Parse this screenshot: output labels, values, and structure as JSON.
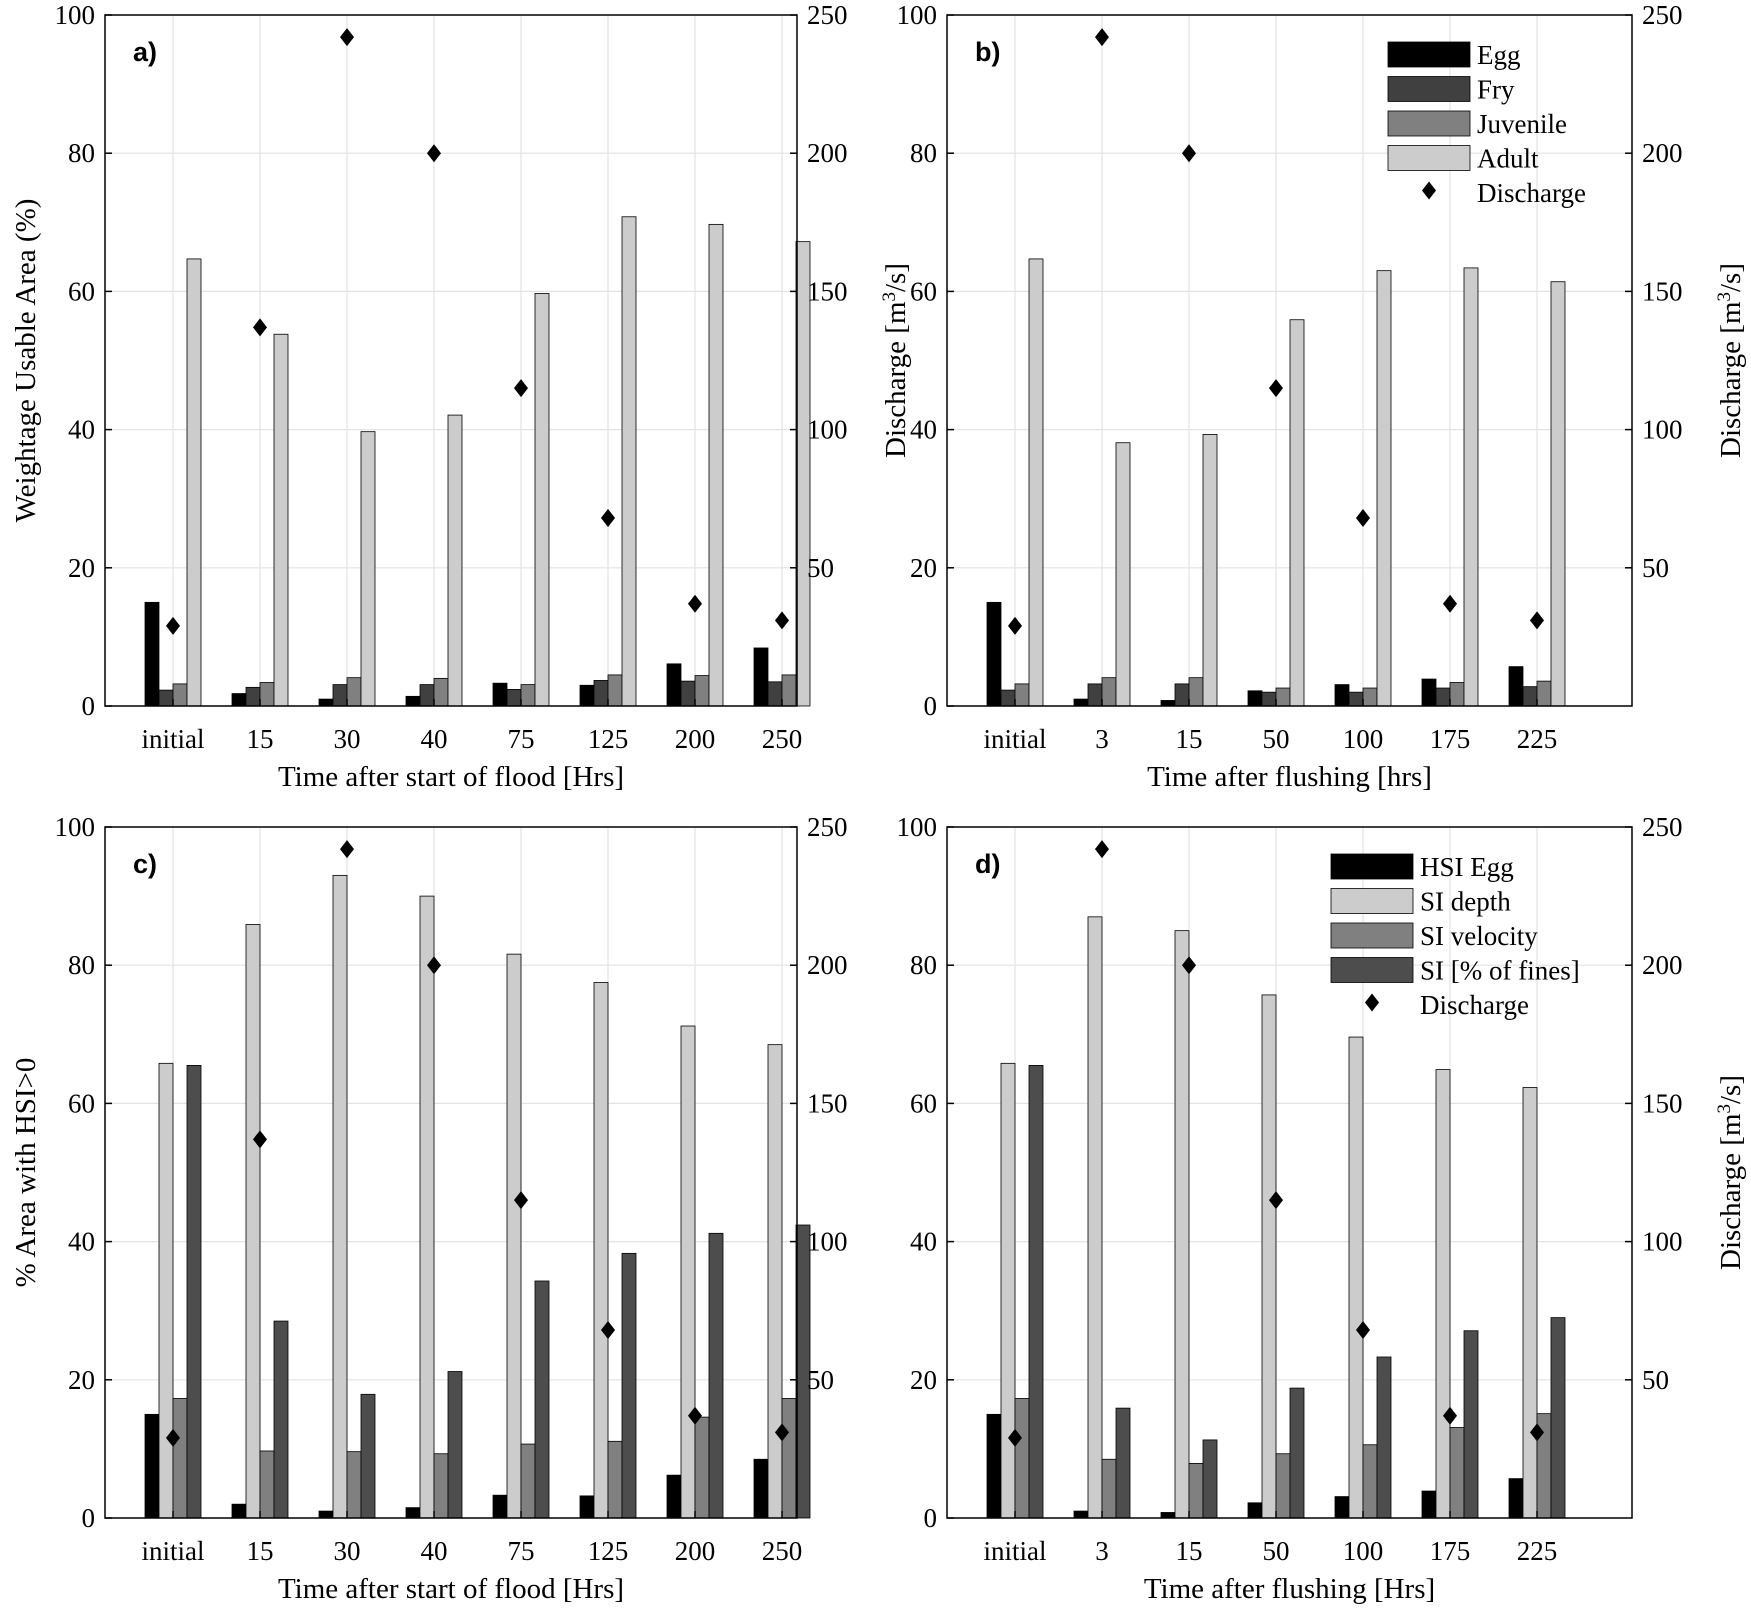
{
  "colors": {
    "egg": "#000000",
    "fry": "#404040",
    "juvenile": "#808080",
    "adult": "#cccccc",
    "hsi_egg": "#000000",
    "si_depth": "#cccccc",
    "si_velocity": "#808080",
    "si_fines": "#4d4d4d",
    "discharge": "#000000",
    "grid": "#e3e3e3"
  },
  "chart_data": [
    {
      "type": "bar",
      "panel_label": "a)",
      "xlabel": "Time after start of flood [Hrs]",
      "ylabel": "Weightage Usable Area (%)",
      "y2label": "Discharge",
      "ylim": [
        0,
        100
      ],
      "y2lim": [
        0,
        250
      ],
      "yticks": [
        "0",
        "20",
        "40",
        "60",
        "80",
        "100"
      ],
      "y2ticks": [
        "50",
        "100",
        "150",
        "200",
        "250"
      ],
      "grid": true,
      "legend": null,
      "categories": [
        "initial",
        "15",
        "30",
        "40",
        "75",
        "125",
        "200",
        "250"
      ],
      "series": [
        {
          "name": "Egg",
          "values": [
            15,
            1.8,
            1,
            1.4,
            3.3,
            3,
            6.1,
            8.4
          ]
        },
        {
          "name": "Fry",
          "values": [
            2.3,
            2.7,
            3.1,
            3.1,
            2.4,
            3.7,
            3.6,
            3.5
          ]
        },
        {
          "name": "Juvenile",
          "values": [
            3.2,
            3.4,
            4.1,
            4,
            3.1,
            4.5,
            4.4,
            4.5
          ]
        },
        {
          "name": "Adult",
          "values": [
            64.7,
            53.8,
            39.7,
            42.1,
            59.7,
            70.8,
            69.7,
            67.2
          ]
        }
      ],
      "discharge": {
        "name": "Discharge",
        "values": [
          29,
          137,
          242,
          200,
          115,
          68,
          37,
          31
        ]
      }
    },
    {
      "type": "bar",
      "panel_label": "b)",
      "xlabel": "Time after flushing [hrs]",
      "ylabel": "",
      "y2label": "Discharge",
      "ylim": [
        0,
        100
      ],
      "y2lim": [
        0,
        250
      ],
      "yticks": [
        "0",
        "20",
        "40",
        "60",
        "80",
        "100"
      ],
      "y2ticks": [
        "50",
        "100",
        "150",
        "200",
        "250"
      ],
      "grid": true,
      "legend": {
        "position": "top-right",
        "entries": [
          "Egg",
          "Fry",
          "Juvenile",
          "Adult",
          "Discharge"
        ]
      },
      "categories": [
        "initial",
        "3",
        "15",
        "50",
        "100",
        "175",
        "225"
      ],
      "series": [
        {
          "name": "Egg",
          "values": [
            15,
            1,
            0.8,
            2.2,
            3.1,
            3.9,
            5.7
          ]
        },
        {
          "name": "Fry",
          "values": [
            2.3,
            3.2,
            3.2,
            2,
            2,
            2.6,
            2.8
          ]
        },
        {
          "name": "Juvenile",
          "values": [
            3.2,
            4.1,
            4.1,
            2.6,
            2.6,
            3.4,
            3.6
          ]
        },
        {
          "name": "Adult",
          "values": [
            64.7,
            38.1,
            39.3,
            55.9,
            63,
            63.4,
            61.4
          ]
        }
      ],
      "discharge": {
        "name": "Discharge",
        "values": [
          29,
          242,
          200,
          115,
          68,
          37,
          31
        ]
      }
    },
    {
      "type": "bar",
      "panel_label": "c)",
      "xlabel": "Time after start of flood [Hrs]",
      "ylabel": "% Area with HSI>0",
      "y2label": "",
      "ylim": [
        0,
        100
      ],
      "y2lim": [
        0,
        250
      ],
      "yticks": [
        "0",
        "20",
        "40",
        "60",
        "80",
        "100"
      ],
      "y2ticks": [
        "50",
        "100",
        "150",
        "200",
        "250"
      ],
      "grid": true,
      "legend": null,
      "categories": [
        "initial",
        "15",
        "30",
        "40",
        "75",
        "125",
        "200",
        "250"
      ],
      "series": [
        {
          "name": "HSI Egg",
          "values": [
            15,
            2,
            1,
            1.5,
            3.3,
            3.2,
            6.2,
            8.5
          ]
        },
        {
          "name": "SI depth",
          "values": [
            65.8,
            85.9,
            93,
            90,
            81.6,
            77.5,
            71.2,
            68.5
          ]
        },
        {
          "name": "SI velocity",
          "values": [
            17.3,
            9.7,
            9.6,
            9.3,
            10.7,
            11.1,
            14.6,
            17.3
          ]
        },
        {
          "name": "SI [% of fines]",
          "values": [
            65.5,
            28.5,
            17.9,
            21.2,
            34.3,
            38.3,
            41.2,
            42.4
          ]
        }
      ],
      "discharge": {
        "name": "Discharge",
        "values": [
          29,
          137,
          242,
          200,
          115,
          68,
          37,
          31
        ]
      }
    },
    {
      "type": "bar",
      "panel_label": "d)",
      "xlabel": "Time after flushing [Hrs]",
      "ylabel": "",
      "y2label": "Discharge",
      "ylim": [
        0,
        100
      ],
      "y2lim": [
        0,
        250
      ],
      "yticks": [
        "0",
        "20",
        "40",
        "60",
        "80",
        "100"
      ],
      "y2ticks": [
        "50",
        "100",
        "150",
        "200",
        "250"
      ],
      "grid": true,
      "legend": {
        "position": "top-right",
        "entries": [
          "HSI Egg",
          "SI depth",
          "SI velocity",
          "SI [% of fines]",
          "Discharge"
        ]
      },
      "categories": [
        "initial",
        "3",
        "15",
        "50",
        "100",
        "175",
        "225"
      ],
      "series": [
        {
          "name": "HSI Egg",
          "values": [
            15,
            1,
            0.8,
            2.2,
            3.1,
            3.9,
            5.7
          ]
        },
        {
          "name": "SI depth",
          "values": [
            65.8,
            87,
            85,
            75.7,
            69.6,
            64.9,
            62.3
          ]
        },
        {
          "name": "SI velocity",
          "values": [
            17.3,
            8.5,
            7.9,
            9.3,
            10.6,
            13.1,
            15.1
          ]
        },
        {
          "name": "SI [% of fines]",
          "values": [
            65.5,
            15.9,
            11.3,
            18.8,
            23.3,
            27.1,
            29
          ]
        }
      ],
      "discharge": {
        "name": "Discharge",
        "values": [
          29,
          242,
          200,
          115,
          68,
          37,
          31
        ]
      }
    }
  ]
}
